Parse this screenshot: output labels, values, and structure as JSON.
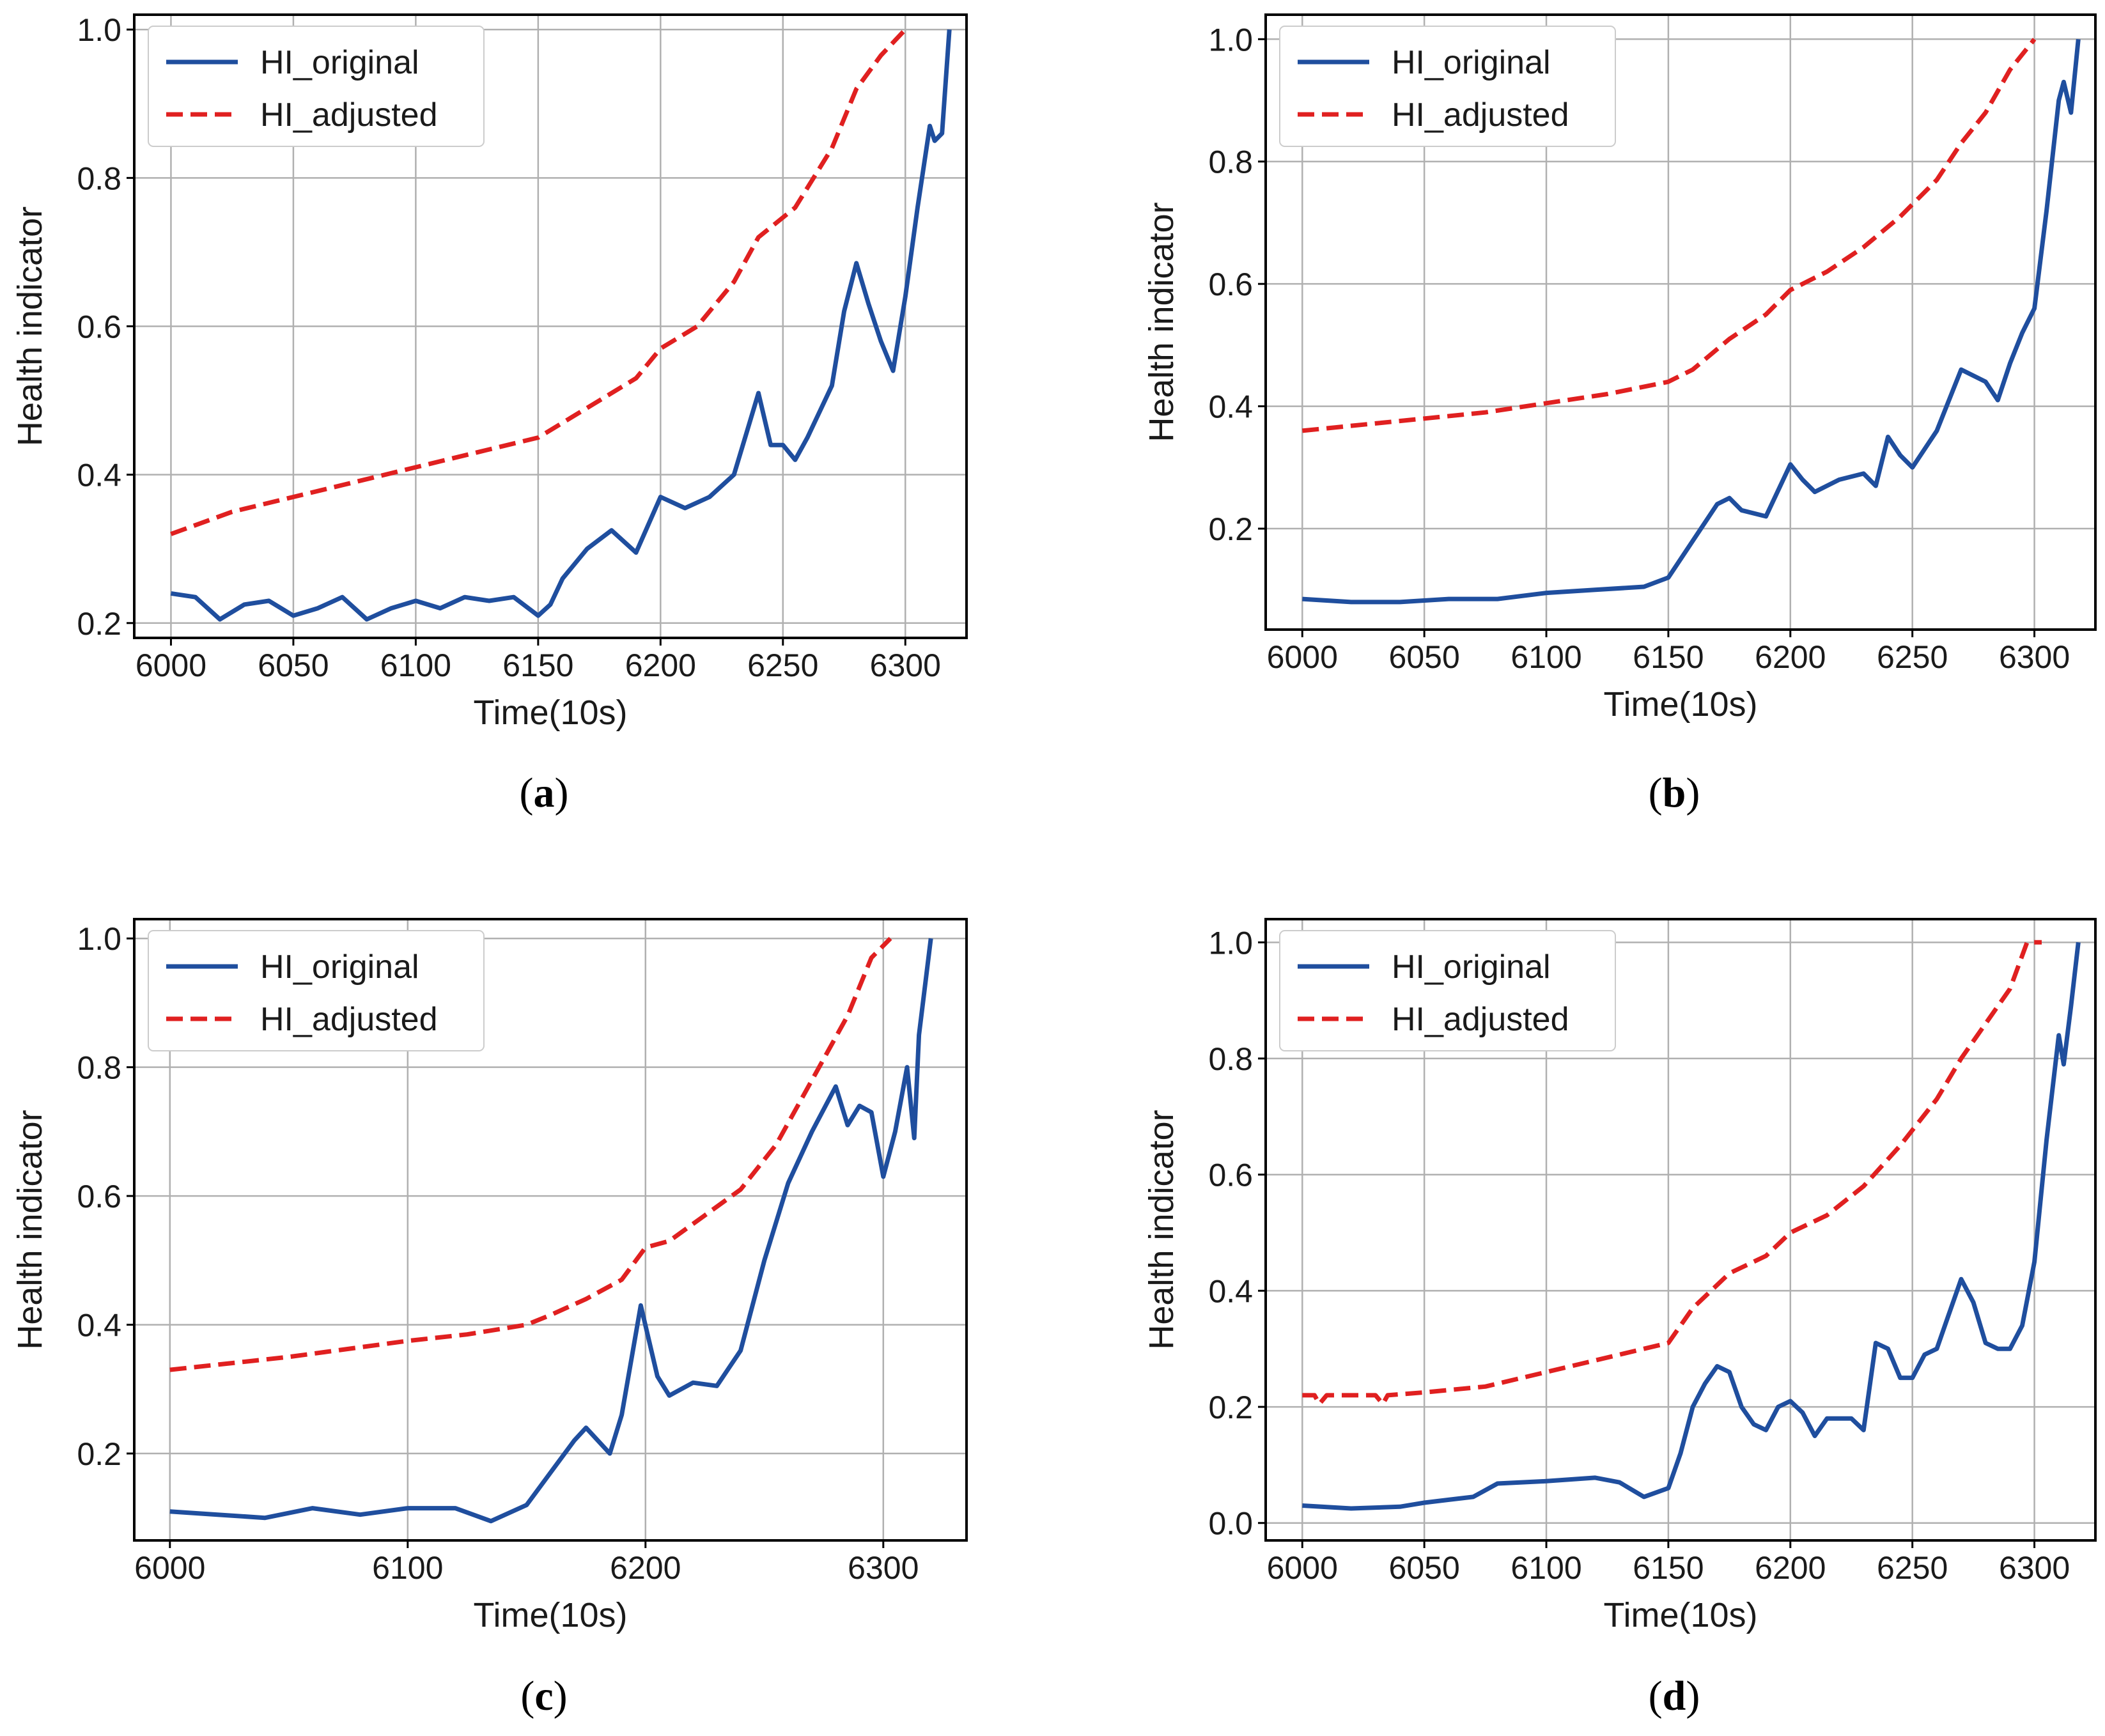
{
  "colors": {
    "original": "#1f4e9e",
    "adjusted": "#e02020",
    "grid": "#b0b0b0",
    "frame": "#000000"
  },
  "chart_data": [
    {
      "panel": "a",
      "caption": "a",
      "type": "line",
      "xlabel": "Time(10s)",
      "ylabel": "Health indicator",
      "xlim": [
        5985,
        6325
      ],
      "ylim": [
        0.18,
        1.02
      ],
      "xticks": [
        6000,
        6050,
        6100,
        6150,
        6200,
        6250,
        6300
      ],
      "xtick_labels": [
        "6000",
        "6050",
        "6100",
        "6150",
        "6200",
        "6250",
        "6300"
      ],
      "yticks": [
        0.2,
        0.4,
        0.6,
        0.8,
        1.0
      ],
      "ytick_labels": [
        "0.2",
        "0.4",
        "0.6",
        "0.8",
        "1.0"
      ],
      "grid": true,
      "legend": "top-left",
      "series": [
        {
          "name": "HI_original",
          "style": "solid",
          "x": [
            6000,
            6010,
            6020,
            6030,
            6040,
            6050,
            6060,
            6070,
            6080,
            6090,
            6100,
            6110,
            6120,
            6130,
            6140,
            6150,
            6155,
            6160,
            6170,
            6180,
            6190,
            6200,
            6210,
            6220,
            6230,
            6235,
            6240,
            6245,
            6250,
            6255,
            6260,
            6270,
            6275,
            6280,
            6285,
            6290,
            6295,
            6300,
            6305,
            6310,
            6312,
            6315,
            6318
          ],
          "y": [
            0.24,
            0.235,
            0.205,
            0.225,
            0.23,
            0.21,
            0.22,
            0.235,
            0.205,
            0.22,
            0.23,
            0.22,
            0.235,
            0.23,
            0.235,
            0.21,
            0.225,
            0.26,
            0.3,
            0.325,
            0.295,
            0.37,
            0.355,
            0.37,
            0.4,
            0.455,
            0.51,
            0.44,
            0.44,
            0.42,
            0.45,
            0.52,
            0.62,
            0.685,
            0.63,
            0.58,
            0.54,
            0.64,
            0.76,
            0.87,
            0.85,
            0.86,
            1.0
          ]
        },
        {
          "name": "HI_adjusted",
          "style": "dashed",
          "x": [
            6000,
            6025,
            6050,
            6075,
            6100,
            6125,
            6150,
            6160,
            6175,
            6190,
            6200,
            6215,
            6230,
            6240,
            6255,
            6270,
            6280,
            6290,
            6300
          ],
          "y": [
            0.32,
            0.35,
            0.37,
            0.39,
            0.41,
            0.43,
            0.45,
            0.47,
            0.5,
            0.53,
            0.57,
            0.6,
            0.66,
            0.72,
            0.76,
            0.84,
            0.92,
            0.965,
            1.0
          ]
        }
      ]
    },
    {
      "panel": "b",
      "caption": "b",
      "type": "line",
      "xlabel": "Time(10s)",
      "ylabel": "Health indicator",
      "xlim": [
        5985,
        6325
      ],
      "ylim": [
        0.035,
        1.04
      ],
      "xticks": [
        6000,
        6050,
        6100,
        6150,
        6200,
        6250,
        6300
      ],
      "xtick_labels": [
        "6000",
        "6050",
        "6100",
        "6150",
        "6200",
        "6250",
        "6300"
      ],
      "yticks": [
        0.2,
        0.4,
        0.6,
        0.8,
        1.0
      ],
      "ytick_labels": [
        "0.2",
        "0.4",
        "0.6",
        "0.8",
        "1.0"
      ],
      "grid": true,
      "legend": "top-left",
      "series": [
        {
          "name": "HI_original",
          "style": "solid",
          "x": [
            6000,
            6020,
            6040,
            6060,
            6080,
            6100,
            6120,
            6140,
            6150,
            6160,
            6170,
            6175,
            6180,
            6190,
            6200,
            6205,
            6210,
            6220,
            6230,
            6235,
            6240,
            6245,
            6250,
            6260,
            6270,
            6275,
            6280,
            6285,
            6290,
            6295,
            6300,
            6305,
            6310,
            6312,
            6315,
            6318
          ],
          "y": [
            0.085,
            0.08,
            0.08,
            0.085,
            0.085,
            0.095,
            0.1,
            0.105,
            0.12,
            0.18,
            0.24,
            0.25,
            0.23,
            0.22,
            0.305,
            0.28,
            0.26,
            0.28,
            0.29,
            0.27,
            0.35,
            0.32,
            0.3,
            0.36,
            0.46,
            0.45,
            0.44,
            0.41,
            0.47,
            0.52,
            0.56,
            0.72,
            0.9,
            0.93,
            0.88,
            1.0
          ]
        },
        {
          "name": "HI_adjusted",
          "style": "dashed",
          "x": [
            6000,
            6025,
            6050,
            6075,
            6100,
            6125,
            6150,
            6160,
            6175,
            6190,
            6200,
            6215,
            6230,
            6245,
            6260,
            6270,
            6280,
            6290,
            6300
          ],
          "y": [
            0.36,
            0.37,
            0.38,
            0.39,
            0.405,
            0.42,
            0.44,
            0.46,
            0.51,
            0.55,
            0.59,
            0.62,
            0.66,
            0.71,
            0.77,
            0.83,
            0.88,
            0.95,
            1.0
          ]
        }
      ]
    },
    {
      "panel": "c",
      "caption": "c",
      "type": "line",
      "xlabel": "Time(10s)",
      "ylabel": "Health indicator",
      "xlim": [
        5985,
        6335
      ],
      "ylim": [
        0.065,
        1.03
      ],
      "xticks": [
        6000,
        6100,
        6200,
        6300
      ],
      "xtick_labels": [
        "6000",
        "6100",
        "6200",
        "6300"
      ],
      "yticks": [
        0.2,
        0.4,
        0.6,
        0.8,
        1.0
      ],
      "ytick_labels": [
        "0.2",
        "0.4",
        "0.6",
        "0.8",
        "1.0"
      ],
      "grid": true,
      "legend": "top-left",
      "series": [
        {
          "name": "HI_original",
          "style": "solid",
          "x": [
            6000,
            6020,
            6040,
            6060,
            6080,
            6100,
            6120,
            6135,
            6150,
            6160,
            6170,
            6175,
            6185,
            6190,
            6198,
            6205,
            6210,
            6220,
            6230,
            6240,
            6250,
            6260,
            6270,
            6280,
            6285,
            6290,
            6295,
            6300,
            6305,
            6310,
            6313,
            6315,
            6320
          ],
          "y": [
            0.11,
            0.105,
            0.1,
            0.115,
            0.105,
            0.115,
            0.115,
            0.095,
            0.12,
            0.17,
            0.22,
            0.24,
            0.2,
            0.26,
            0.43,
            0.32,
            0.29,
            0.31,
            0.305,
            0.36,
            0.5,
            0.62,
            0.7,
            0.77,
            0.71,
            0.74,
            0.73,
            0.63,
            0.7,
            0.8,
            0.69,
            0.85,
            1.0
          ]
        },
        {
          "name": "HI_adjusted",
          "style": "dashed",
          "x": [
            6000,
            6050,
            6100,
            6125,
            6150,
            6160,
            6175,
            6190,
            6200,
            6210,
            6225,
            6240,
            6255,
            6270,
            6285,
            6295,
            6303
          ],
          "y": [
            0.33,
            0.35,
            0.375,
            0.385,
            0.4,
            0.415,
            0.44,
            0.47,
            0.52,
            0.53,
            0.57,
            0.61,
            0.68,
            0.78,
            0.88,
            0.97,
            1.0
          ]
        }
      ]
    },
    {
      "panel": "d",
      "caption": "d",
      "type": "line",
      "xlabel": "Time(10s)",
      "ylabel": "Health indicator",
      "xlim": [
        5985,
        6325
      ],
      "ylim": [
        -0.03,
        1.04
      ],
      "xticks": [
        6000,
        6050,
        6100,
        6150,
        6200,
        6250,
        6300
      ],
      "xtick_labels": [
        "6000",
        "6050",
        "6100",
        "6150",
        "6200",
        "6250",
        "6300"
      ],
      "yticks": [
        0.0,
        0.2,
        0.4,
        0.6,
        0.8,
        1.0
      ],
      "ytick_labels": [
        "0.0",
        "0.2",
        "0.4",
        "0.6",
        "0.8",
        "1.0"
      ],
      "grid": true,
      "legend": "top-left",
      "series": [
        {
          "name": "HI_original",
          "style": "solid",
          "x": [
            6000,
            6020,
            6040,
            6050,
            6060,
            6070,
            6080,
            6100,
            6120,
            6130,
            6140,
            6150,
            6155,
            6160,
            6165,
            6170,
            6175,
            6180,
            6185,
            6190,
            6195,
            6200,
            6205,
            6210,
            6215,
            6220,
            6225,
            6230,
            6235,
            6240,
            6245,
            6250,
            6255,
            6260,
            6265,
            6270,
            6275,
            6280,
            6285,
            6290,
            6295,
            6300,
            6305,
            6310,
            6312,
            6315,
            6318
          ],
          "y": [
            0.03,
            0.025,
            0.028,
            0.035,
            0.04,
            0.045,
            0.068,
            0.072,
            0.078,
            0.07,
            0.045,
            0.06,
            0.12,
            0.2,
            0.24,
            0.27,
            0.26,
            0.2,
            0.17,
            0.16,
            0.2,
            0.21,
            0.19,
            0.15,
            0.18,
            0.18,
            0.18,
            0.16,
            0.31,
            0.3,
            0.25,
            0.25,
            0.29,
            0.3,
            0.36,
            0.42,
            0.38,
            0.31,
            0.3,
            0.3,
            0.34,
            0.45,
            0.66,
            0.84,
            0.79,
            0.89,
            1.0
          ]
        },
        {
          "name": "HI_adjusted",
          "style": "dashed",
          "x": [
            6000,
            6005,
            6007,
            6010,
            6030,
            6033,
            6035,
            6050,
            6075,
            6100,
            6120,
            6140,
            6150,
            6160,
            6175,
            6190,
            6200,
            6215,
            6230,
            6245,
            6260,
            6270,
            6280,
            6290,
            6297,
            6303
          ],
          "y": [
            0.22,
            0.22,
            0.205,
            0.22,
            0.22,
            0.205,
            0.22,
            0.225,
            0.235,
            0.26,
            0.28,
            0.3,
            0.31,
            0.37,
            0.43,
            0.46,
            0.5,
            0.53,
            0.58,
            0.65,
            0.73,
            0.8,
            0.86,
            0.92,
            1.0,
            1.0
          ]
        }
      ]
    }
  ]
}
